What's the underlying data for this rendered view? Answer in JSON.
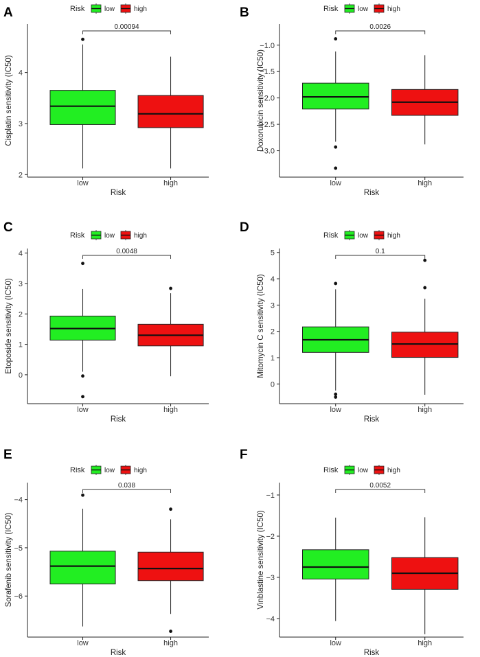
{
  "figure": {
    "legend": {
      "title": "Risk",
      "items": [
        {
          "label": "low",
          "color": "#22ee22"
        },
        {
          "label": "high",
          "color": "#ee1111"
        }
      ]
    },
    "x_title": "Risk",
    "categories": [
      "low",
      "high"
    ]
  },
  "chart_data": [
    {
      "panel": "A",
      "type": "box",
      "ylabel": "Cisplatin sensitivity (IC50)",
      "ylim": [
        1.95,
        4.95
      ],
      "yticks": [
        2,
        3,
        4
      ],
      "pvalue": "0.00094",
      "groups": [
        {
          "category": "low",
          "color": "#22ee22",
          "min": 2.12,
          "q1": 2.98,
          "median": 3.34,
          "q3": 3.65,
          "max": 4.55,
          "outliers": [
            4.65
          ]
        },
        {
          "category": "high",
          "color": "#ee1111",
          "min": 2.12,
          "q1": 2.92,
          "median": 3.19,
          "q3": 3.55,
          "max": 4.31,
          "outliers": []
        }
      ]
    },
    {
      "panel": "B",
      "type": "box",
      "ylabel": "Doxorubicin sensitivity (IC50)",
      "ylim": [
        -3.5,
        -0.6
      ],
      "yticks": [
        -3.0,
        -2.5,
        -2.0,
        -1.5,
        -1.0
      ],
      "pvalue": "0.0026",
      "groups": [
        {
          "category": "low",
          "color": "#22ee22",
          "min": -2.83,
          "q1": -2.21,
          "median": -1.98,
          "q3": -1.72,
          "max": -1.12,
          "outliers": [
            -0.88,
            -2.93,
            -3.33
          ]
        },
        {
          "category": "high",
          "color": "#ee1111",
          "min": -2.88,
          "q1": -2.33,
          "median": -2.08,
          "q3": -1.84,
          "max": -1.19,
          "outliers": []
        }
      ]
    },
    {
      "panel": "C",
      "type": "box",
      "ylabel": "Etoposide sensitivity (IC50)",
      "ylim": [
        -0.95,
        4.15
      ],
      "yticks": [
        0,
        1,
        2,
        3,
        4
      ],
      "pvalue": "0.0048",
      "groups": [
        {
          "category": "low",
          "color": "#22ee22",
          "min": 0.1,
          "q1": 1.14,
          "median": 1.52,
          "q3": 1.93,
          "max": 2.82,
          "outliers": [
            3.66,
            -0.04,
            -0.72
          ]
        },
        {
          "category": "high",
          "color": "#ee1111",
          "min": -0.05,
          "q1": 0.95,
          "median": 1.3,
          "q3": 1.66,
          "max": 2.68,
          "outliers": [
            2.84
          ]
        }
      ]
    },
    {
      "panel": "D",
      "type": "box",
      "ylabel": "Mitomycin C sensitivity (IC50)",
      "ylim": [
        -0.75,
        5.15
      ],
      "yticks": [
        0,
        1,
        2,
        3,
        4,
        5
      ],
      "pvalue": "0.1",
      "groups": [
        {
          "category": "low",
          "color": "#22ee22",
          "min": -0.25,
          "q1": 1.2,
          "median": 1.68,
          "q3": 2.17,
          "max": 3.6,
          "outliers": [
            3.82,
            -0.39,
            -0.5
          ]
        },
        {
          "category": "high",
          "color": "#ee1111",
          "min": -0.41,
          "q1": 1.01,
          "median": 1.52,
          "q3": 1.97,
          "max": 3.24,
          "outliers": [
            4.7,
            3.66
          ]
        }
      ]
    },
    {
      "panel": "E",
      "type": "box",
      "ylabel": "Sorafenib sensitivity (IC50)",
      "ylim": [
        -6.85,
        -3.65
      ],
      "yticks": [
        -6,
        -5,
        -4
      ],
      "pvalue": "0.038",
      "groups": [
        {
          "category": "low",
          "color": "#22ee22",
          "min": -6.63,
          "q1": -5.75,
          "median": -5.38,
          "q3": -5.07,
          "max": -4.19,
          "outliers": [
            -3.91
          ]
        },
        {
          "category": "high",
          "color": "#ee1111",
          "min": -6.37,
          "q1": -5.68,
          "median": -5.43,
          "q3": -5.09,
          "max": -4.41,
          "outliers": [
            -4.2,
            -6.73
          ]
        }
      ]
    },
    {
      "panel": "F",
      "type": "box",
      "ylabel": "Vinblastine sensitivity (IC50)",
      "ylim": [
        -4.45,
        -0.7
      ],
      "yticks": [
        -4,
        -3,
        -2,
        -1
      ],
      "pvalue": "0.0052",
      "groups": [
        {
          "category": "low",
          "color": "#22ee22",
          "min": -4.06,
          "q1": -3.04,
          "median": -2.75,
          "q3": -2.33,
          "max": -1.55,
          "outliers": []
        },
        {
          "category": "high",
          "color": "#ee1111",
          "min": -4.38,
          "q1": -3.29,
          "median": -2.9,
          "q3": -2.52,
          "max": -1.54,
          "outliers": []
        }
      ]
    }
  ]
}
